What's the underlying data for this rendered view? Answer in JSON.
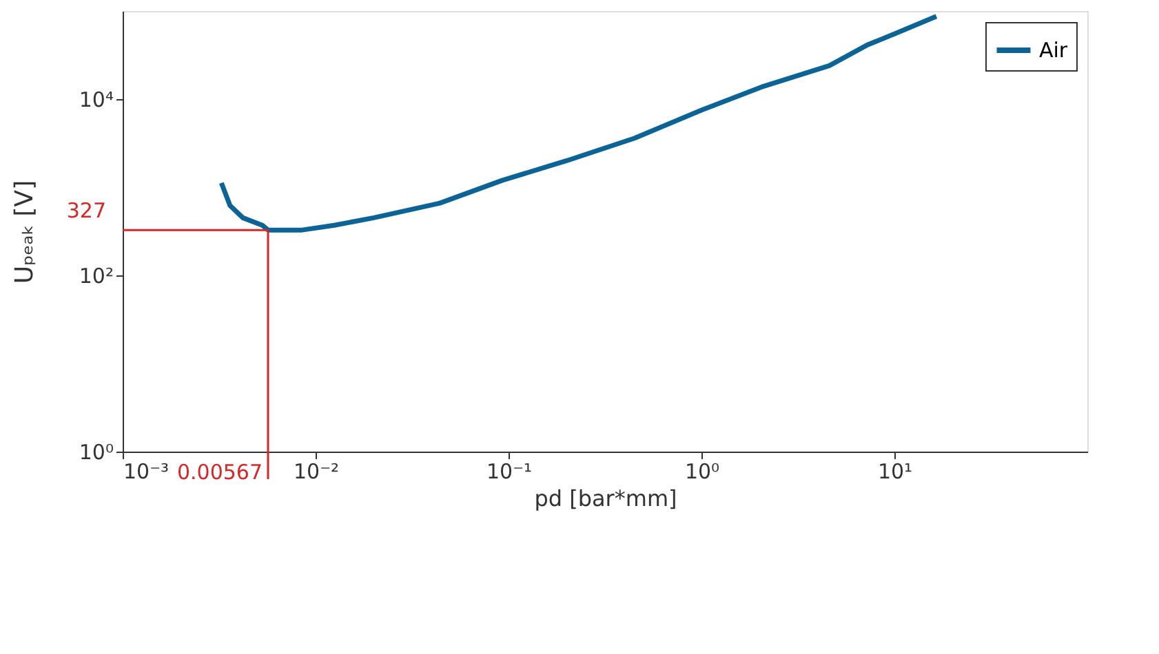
{
  "chart_data": {
    "type": "line",
    "xlabel": "pd [bar*mm]",
    "ylabel": "Uₚₑₐₖ [V]",
    "log": "xy",
    "grid": false,
    "legend": "top right",
    "xlim": [
      0.001,
      100
    ],
    "ylim": [
      1,
      100000
    ],
    "xticks": [
      {
        "value": 0.001,
        "label": "10⁻³"
      },
      {
        "value": 0.01,
        "label": "10⁻²"
      },
      {
        "value": 0.1,
        "label": "10⁻¹"
      },
      {
        "value": 1,
        "label": "10⁰"
      },
      {
        "value": 10,
        "label": "10¹"
      }
    ],
    "yticks": [
      {
        "value": 1,
        "label": "10⁰"
      },
      {
        "value": 100,
        "label": "10²"
      },
      {
        "value": 10000,
        "label": "10⁴"
      }
    ],
    "series": [
      {
        "name": "Air",
        "color": "#0b6396",
        "x": [
          0.00325,
          0.0036,
          0.0042,
          0.0053,
          0.00567,
          0.0085,
          0.0125,
          0.02,
          0.044,
          0.093,
          0.2,
          0.45,
          1.0,
          2.1,
          4.6,
          7.2,
          10,
          16.5
        ],
        "values": [
          1120,
          620,
          450,
          370,
          327,
          327,
          370,
          450,
          660,
          1200,
          2000,
          3600,
          7500,
          14000,
          24000,
          41000,
          55000,
          87000
        ]
      }
    ],
    "ref_lines": [
      {
        "axis": "y",
        "value": 327,
        "label": "327",
        "color": "#d62728"
      },
      {
        "axis": "x",
        "value": 0.00567,
        "label": "0.00567",
        "color": "#d62728"
      }
    ]
  }
}
